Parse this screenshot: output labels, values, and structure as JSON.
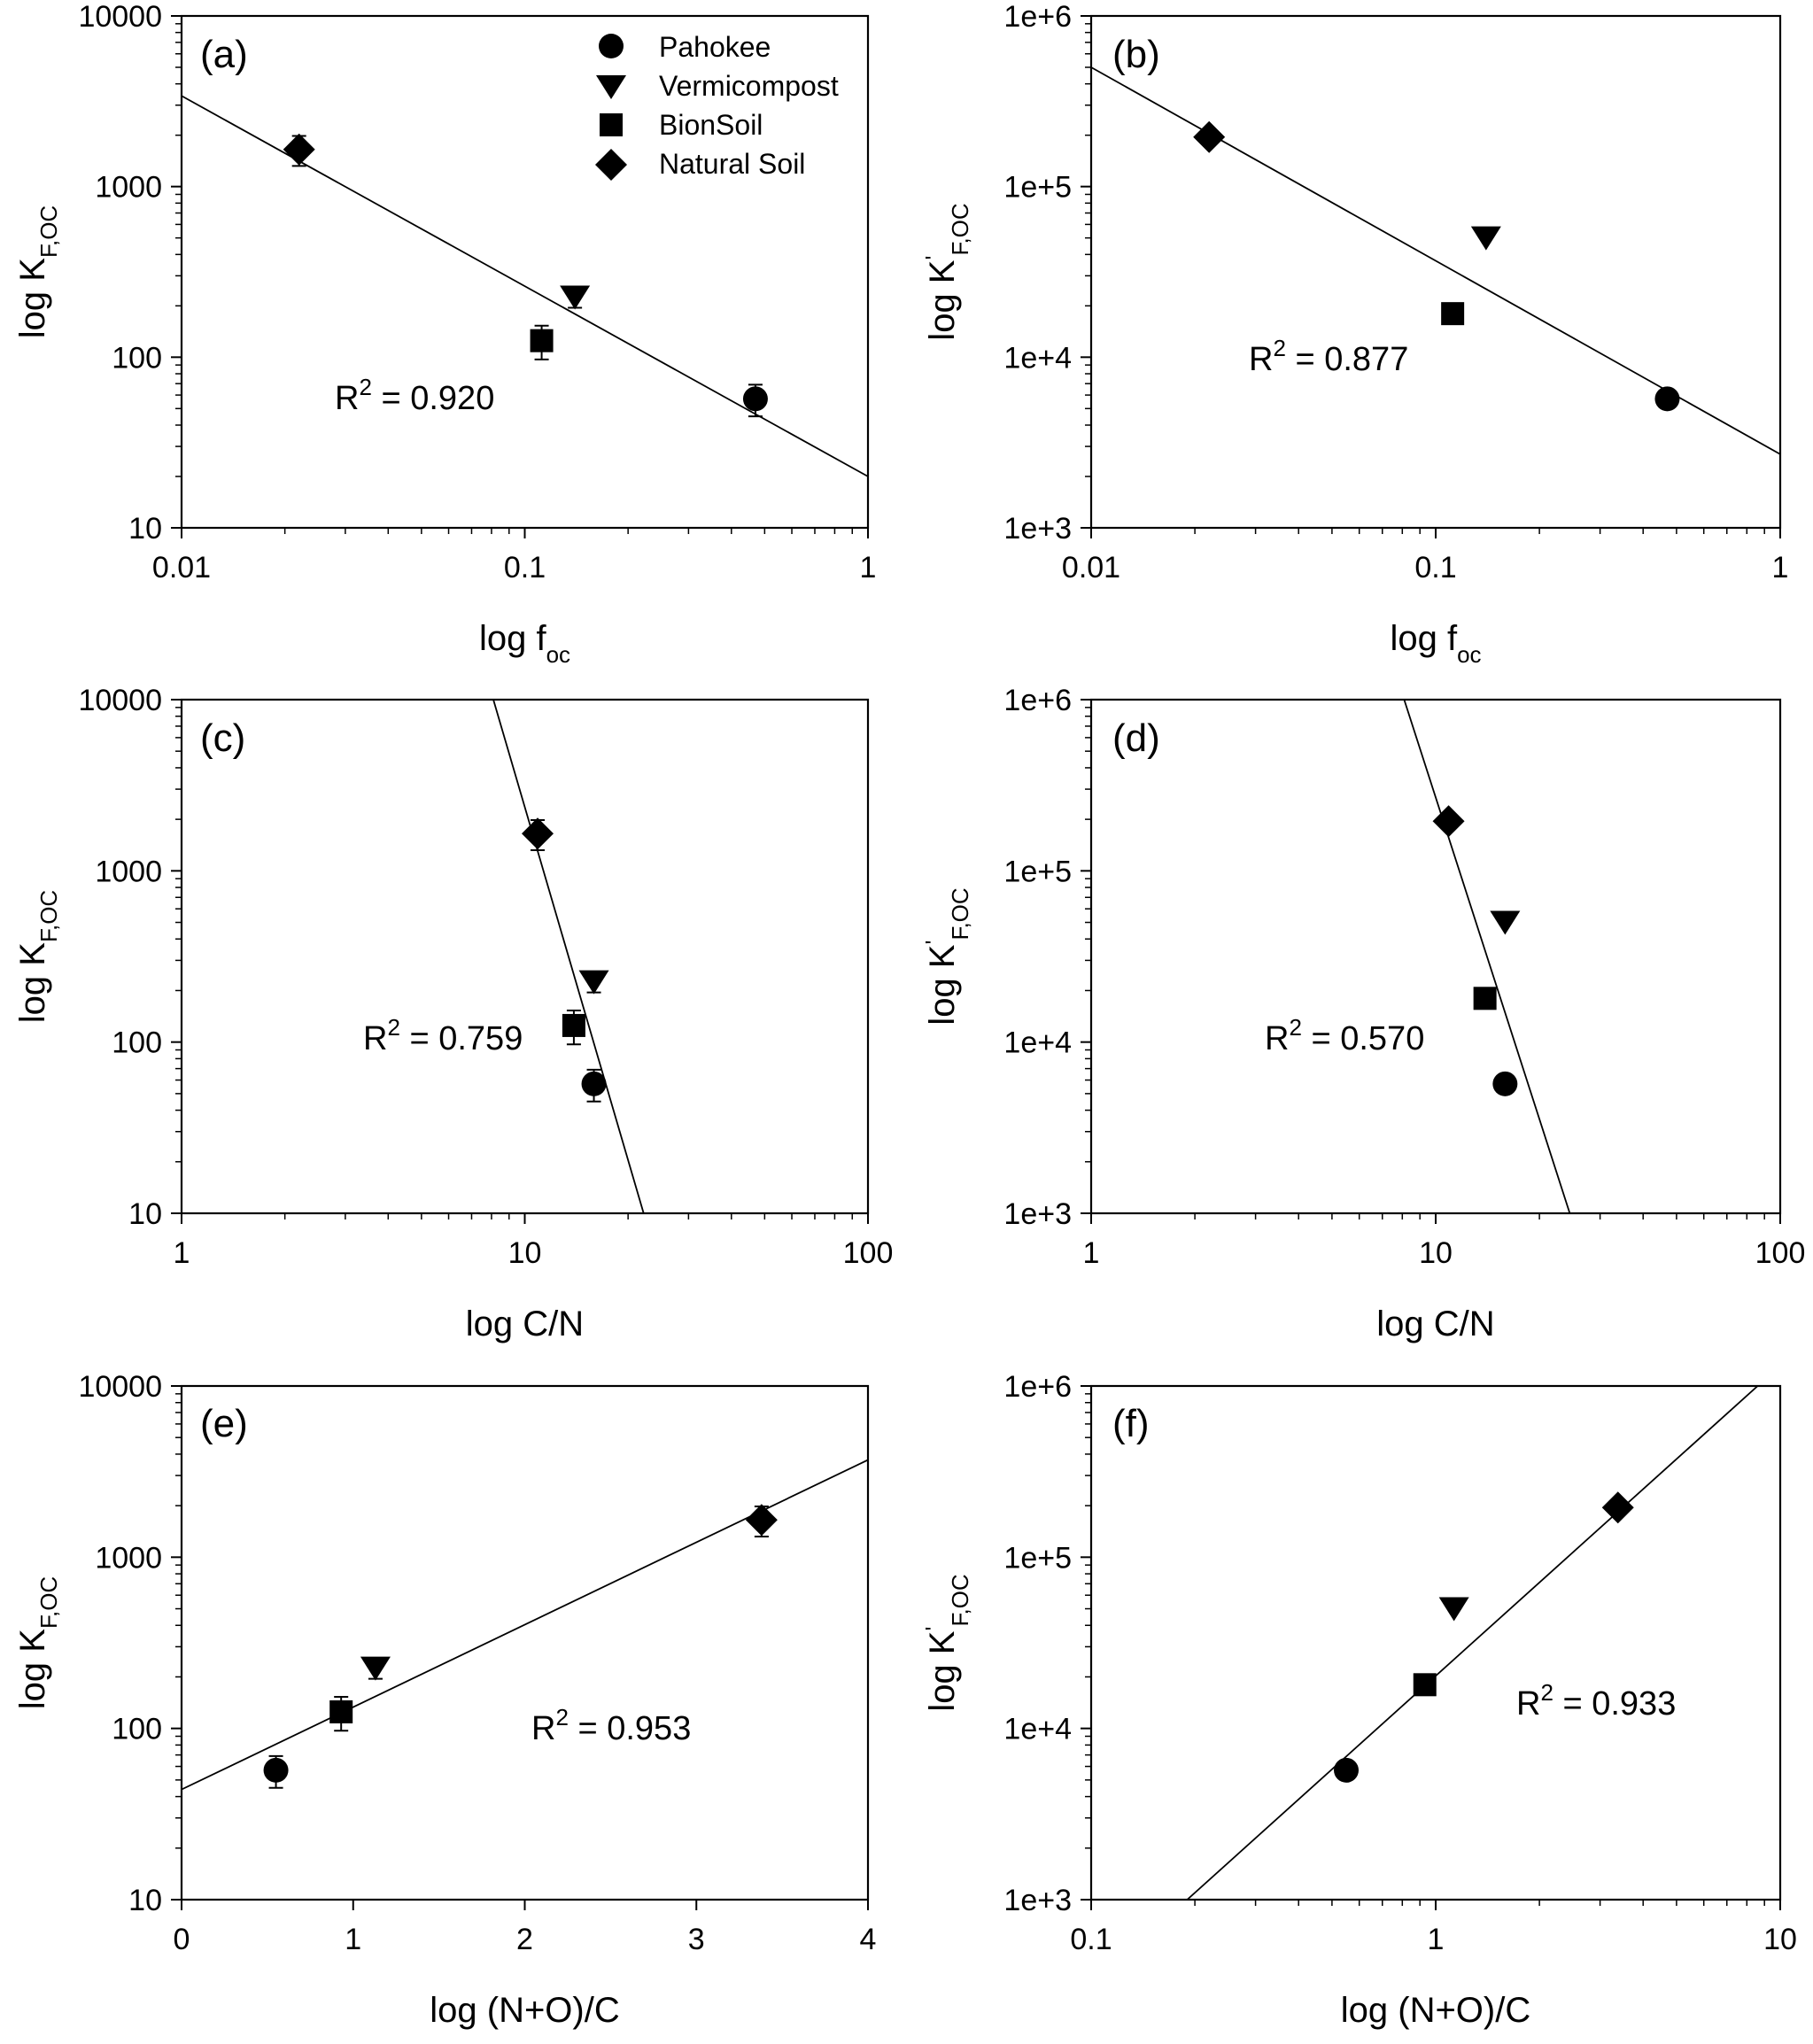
{
  "legend": {
    "entries": [
      {
        "name": "Pahokee",
        "marker": "circle"
      },
      {
        "name": "Vermicompost",
        "marker": "triangle-down"
      },
      {
        "name": "BionSoil",
        "marker": "square"
      },
      {
        "name": "Natural Soil",
        "marker": "diamond"
      }
    ]
  },
  "chart_data": [
    {
      "panel": "(a)",
      "type": "scatter",
      "xscale": "log",
      "yscale": "log",
      "xlim": [
        0.01,
        1
      ],
      "ylim": [
        10,
        10000
      ],
      "xticks": [
        "0.01",
        "0.1",
        "1"
      ],
      "yticks": [
        "10",
        "100",
        "1000",
        "10000"
      ],
      "xlabel": {
        "main": "log f",
        "sub": "oc"
      },
      "ylabel": {
        "main": "log K",
        "sub": "F,OC",
        "prime": ""
      },
      "r2": "R² = 0.920",
      "r2_main": "R",
      "r2_sup": "2",
      "r2_value": " = 0.920",
      "fit": {
        "x": [
          0.01,
          1
        ],
        "y": [
          3400,
          20
        ]
      },
      "points": [
        {
          "series": "Pahokee",
          "x": 0.47,
          "y": 57,
          "err": 12
        },
        {
          "series": "Vermicompost",
          "x": 0.14,
          "y": 225,
          "err": 30
        },
        {
          "series": "BionSoil",
          "x": 0.112,
          "y": 125,
          "err": 28
        },
        {
          "series": "Natural Soil",
          "x": 0.022,
          "y": 1650,
          "err": 330
        }
      ]
    },
    {
      "panel": "(b)",
      "type": "scatter",
      "xscale": "log",
      "yscale": "log",
      "xlim": [
        0.01,
        1
      ],
      "ylim": [
        1000,
        1000000
      ],
      "xticks": [
        "0.01",
        "0.1",
        "1"
      ],
      "yticks": [
        "1e+3",
        "1e+4",
        "1e+5",
        "1e+6"
      ],
      "xlabel": {
        "main": "log f",
        "sub": "oc"
      },
      "ylabel": {
        "main": "log K",
        "sub": "F,OC",
        "prime": "'"
      },
      "r2": "R² = 0.877",
      "r2_main": "R",
      "r2_sup": "2",
      "r2_value": " = 0.877",
      "fit": {
        "x": [
          0.01,
          1
        ],
        "y": [
          500000,
          2700
        ]
      },
      "points": [
        {
          "series": "Pahokee",
          "x": 0.47,
          "y": 5700,
          "err": 0
        },
        {
          "series": "Vermicompost",
          "x": 0.14,
          "y": 50000,
          "err": 0
        },
        {
          "series": "BionSoil",
          "x": 0.112,
          "y": 18000,
          "err": 0
        },
        {
          "series": "Natural Soil",
          "x": 0.022,
          "y": 195000,
          "err": 0
        }
      ]
    },
    {
      "panel": "(c)",
      "type": "scatter",
      "xscale": "log",
      "yscale": "log",
      "xlim": [
        1,
        100
      ],
      "ylim": [
        10,
        10000
      ],
      "xticks": [
        "1",
        "10",
        "100"
      ],
      "yticks": [
        "10",
        "100",
        "1000",
        "10000"
      ],
      "xlabel": {
        "main": "log C/N",
        "sub": ""
      },
      "ylabel": {
        "main": "log K",
        "sub": "F,OC",
        "prime": ""
      },
      "r2": "R² = 0.759",
      "r2_main": "R",
      "r2_sup": "2",
      "r2_value": " = 0.759",
      "fit": {
        "x": [
          8.1,
          22.2
        ],
        "y": [
          10000,
          10
        ]
      },
      "points": [
        {
          "series": "Pahokee",
          "x": 15.9,
          "y": 57,
          "err": 12
        },
        {
          "series": "Vermicompost",
          "x": 15.9,
          "y": 225,
          "err": 30
        },
        {
          "series": "BionSoil",
          "x": 13.9,
          "y": 125,
          "err": 28
        },
        {
          "series": "Natural Soil",
          "x": 10.9,
          "y": 1650,
          "err": 330
        }
      ]
    },
    {
      "panel": "(d)",
      "type": "scatter",
      "xscale": "log",
      "yscale": "log",
      "xlim": [
        1,
        100
      ],
      "ylim": [
        1000,
        1000000
      ],
      "xticks": [
        "1",
        "10",
        "100"
      ],
      "yticks": [
        "1e+3",
        "1e+4",
        "1e+5",
        "1e+6"
      ],
      "xlabel": {
        "main": "log C/N",
        "sub": ""
      },
      "ylabel": {
        "main": "log K",
        "sub": "F,OC",
        "prime": "'"
      },
      "r2": "R² = 0.570",
      "r2_main": "R",
      "r2_sup": "2",
      "r2_value": " = 0.570",
      "fit": {
        "x": [
          8.1,
          24.5
        ],
        "y": [
          1000000,
          1000
        ]
      },
      "points": [
        {
          "series": "Pahokee",
          "x": 15.9,
          "y": 5700,
          "err": 0
        },
        {
          "series": "Vermicompost",
          "x": 15.9,
          "y": 50000,
          "err": 0
        },
        {
          "series": "BionSoil",
          "x": 13.9,
          "y": 18000,
          "err": 0
        },
        {
          "series": "Natural Soil",
          "x": 10.9,
          "y": 195000,
          "err": 0
        }
      ]
    },
    {
      "panel": "(e)",
      "type": "scatter",
      "xscale": "linear",
      "yscale": "log",
      "xlim": [
        0,
        4
      ],
      "ylim": [
        10,
        10000
      ],
      "xticks": [
        "0",
        "1",
        "2",
        "3",
        "4"
      ],
      "yticks": [
        "10",
        "100",
        "1000",
        "10000"
      ],
      "xlabel": {
        "main": "log (N+O)/C",
        "sub": ""
      },
      "ylabel": {
        "main": "log K",
        "sub": "F,OC",
        "prime": ""
      },
      "r2": "R² = 0.953",
      "r2_main": "R",
      "r2_sup": "2",
      "r2_value": " = 0.953",
      "fit": {
        "x": [
          0,
          4
        ],
        "y": [
          44,
          3700
        ]
      },
      "points": [
        {
          "series": "Pahokee",
          "x": 0.55,
          "y": 57,
          "err": 12
        },
        {
          "series": "Vermicompost",
          "x": 1.13,
          "y": 225,
          "err": 30
        },
        {
          "series": "BionSoil",
          "x": 0.93,
          "y": 125,
          "err": 28
        },
        {
          "series": "Natural Soil",
          "x": 3.38,
          "y": 1650,
          "err": 330
        }
      ]
    },
    {
      "panel": "(f)",
      "type": "scatter",
      "xscale": "log",
      "yscale": "log",
      "xlim": [
        0.1,
        10
      ],
      "ylim": [
        1000,
        1000000
      ],
      "xticks": [
        "0.1",
        "1",
        "10"
      ],
      "yticks": [
        "1e+3",
        "1e+4",
        "1e+5",
        "1e+6"
      ],
      "xlabel": {
        "main": "log (N+O)/C",
        "sub": ""
      },
      "ylabel": {
        "main": "log K",
        "sub": "F,OC",
        "prime": "'"
      },
      "r2": "R² = 0.933",
      "r2_main": "R",
      "r2_sup": "2",
      "r2_value": " = 0.933",
      "fit": {
        "x": [
          0.19,
          8.6
        ],
        "y": [
          1000,
          1000000
        ]
      },
      "points": [
        {
          "series": "Pahokee",
          "x": 0.55,
          "y": 5700,
          "err": 0
        },
        {
          "series": "Vermicompost",
          "x": 1.13,
          "y": 50000,
          "err": 0
        },
        {
          "series": "BionSoil",
          "x": 0.93,
          "y": 18000,
          "err": 0
        },
        {
          "series": "Natural Soil",
          "x": 3.38,
          "y": 195000,
          "err": 0
        }
      ]
    }
  ]
}
